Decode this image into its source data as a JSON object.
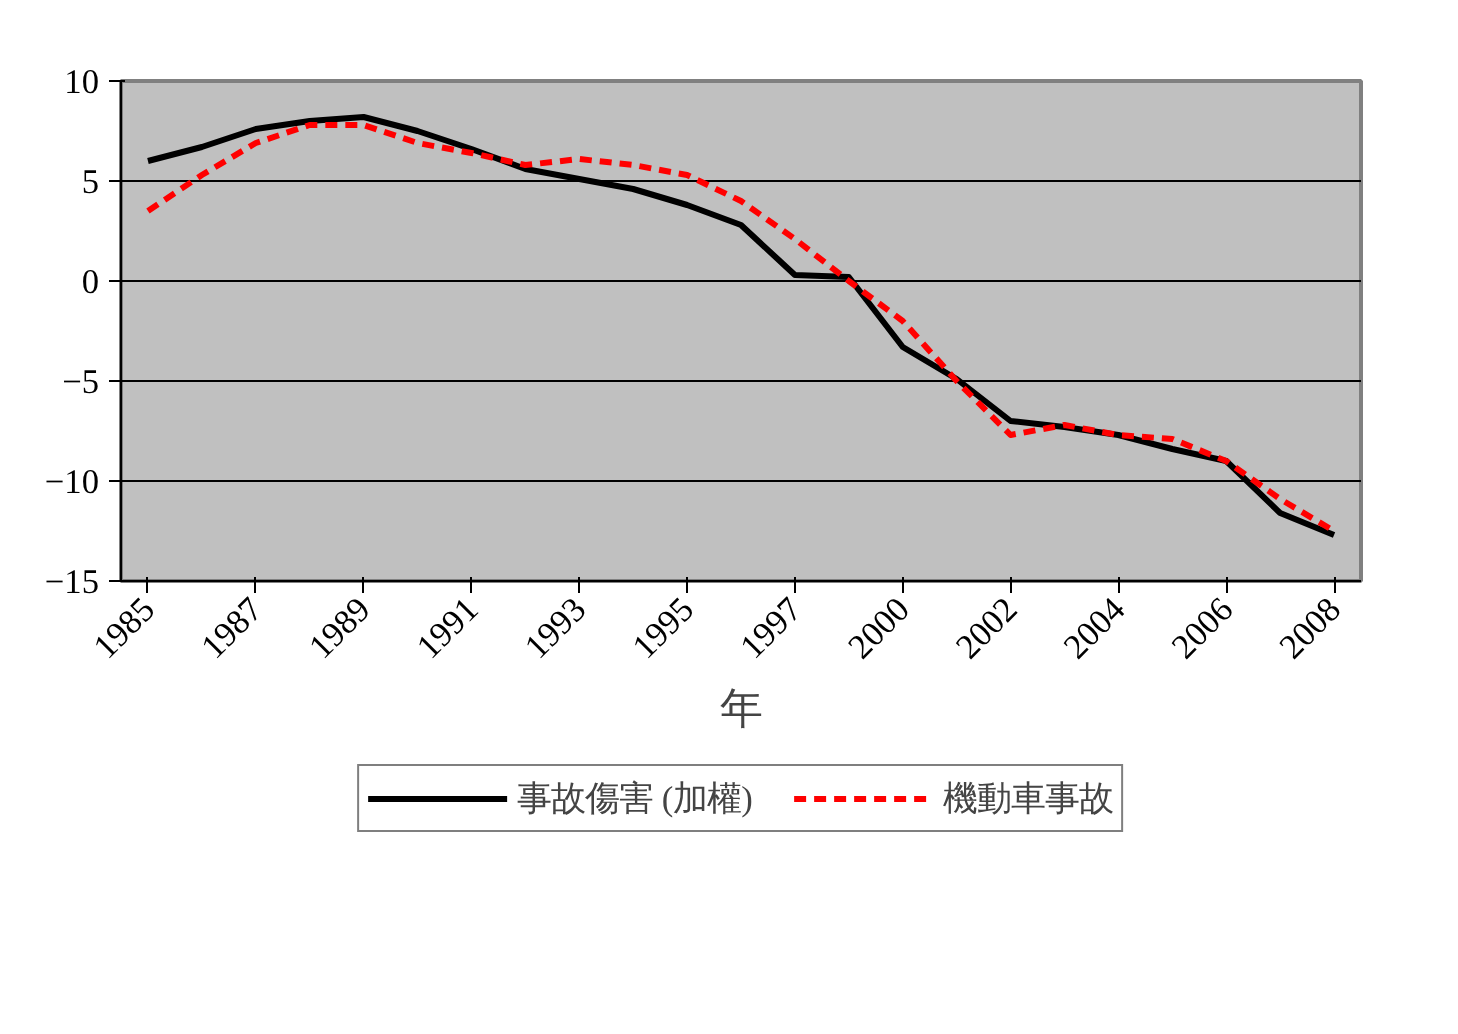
{
  "chart_data": {
    "type": "line",
    "xlabel": "年",
    "categories": [
      "1985",
      null,
      "1987",
      null,
      "1989",
      null,
      "1991",
      null,
      "1993",
      null,
      "1995",
      null,
      "1997",
      null,
      "2000",
      null,
      "2002",
      null,
      "2004",
      null,
      "2006",
      null,
      "2008"
    ],
    "series": [
      {
        "name": "事故傷害 (加權)",
        "color": "#000000",
        "line_style": "solid",
        "values": [
          6.0,
          6.7,
          7.6,
          8.0,
          8.2,
          7.5,
          6.6,
          5.6,
          5.1,
          4.6,
          3.8,
          2.8,
          0.3,
          0.2,
          -3.3,
          -4.9,
          -7.0,
          -7.3,
          -7.7,
          -8.4,
          -9.0,
          -11.6,
          -12.7
        ]
      },
      {
        "name": "機動車事故",
        "color": "#ff0000",
        "line_style": "dashed",
        "values": [
          3.5,
          5.3,
          6.9,
          7.8,
          7.8,
          6.9,
          6.4,
          5.8,
          6.1,
          5.8,
          5.3,
          4.0,
          2.1,
          0.0,
          -2.0,
          -5.0,
          -7.7,
          -7.2,
          -7.7,
          -7.9,
          -9.0,
          -10.9,
          -12.5
        ]
      }
    ],
    "ylim": [
      -15,
      10
    ],
    "yticks": [
      -15,
      -10,
      -5,
      0,
      5,
      10
    ],
    "grid": "y",
    "legend": "bottom",
    "marker": "none"
  }
}
